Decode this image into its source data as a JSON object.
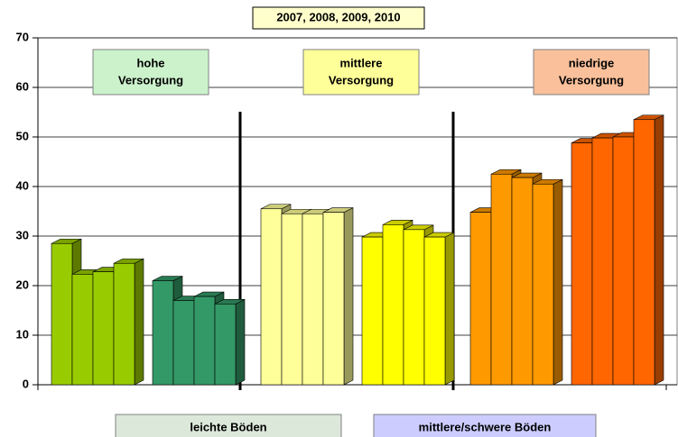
{
  "chart_data": {
    "type": "bar",
    "title": "2007, 2008, 2009, 2010",
    "groups": [
      {
        "color": "#99cc00",
        "values": [
          28.5,
          22.3,
          22.8,
          24.5
        ]
      },
      {
        "color": "#339966",
        "values": [
          21,
          17,
          17.8,
          16.3
        ]
      },
      {
        "color": "#ffff99",
        "values": [
          35.5,
          34.5,
          34.5,
          34.8
        ]
      },
      {
        "color": "#ffff00",
        "values": [
          29.8,
          32.3,
          31.3,
          29.8
        ]
      },
      {
        "color": "#ff9900",
        "values": [
          34.8,
          42.5,
          41.8,
          40.5
        ]
      },
      {
        "color": "#ff6600",
        "values": [
          48.8,
          49.8,
          50,
          53.5
        ]
      }
    ],
    "supply_labels": [
      {
        "lines": [
          "hohe",
          "Versorgung"
        ],
        "color": "#ccf2cc"
      },
      {
        "lines": [
          "mittlere",
          "Versorgung"
        ],
        "color": "#ffff99"
      },
      {
        "lines": [
          "niedrige",
          "Versorgung"
        ],
        "color": "#f9c09b"
      }
    ],
    "soil_labels": [
      {
        "text": "leichte Böden",
        "color": "#dbe8da"
      },
      {
        "text": "mittlere/schwere Böden",
        "color": "#ccccff"
      }
    ],
    "ylim": [
      0,
      70
    ],
    "yticks": [
      0,
      10,
      20,
      30,
      40,
      50,
      60,
      70
    ],
    "grid": true
  }
}
